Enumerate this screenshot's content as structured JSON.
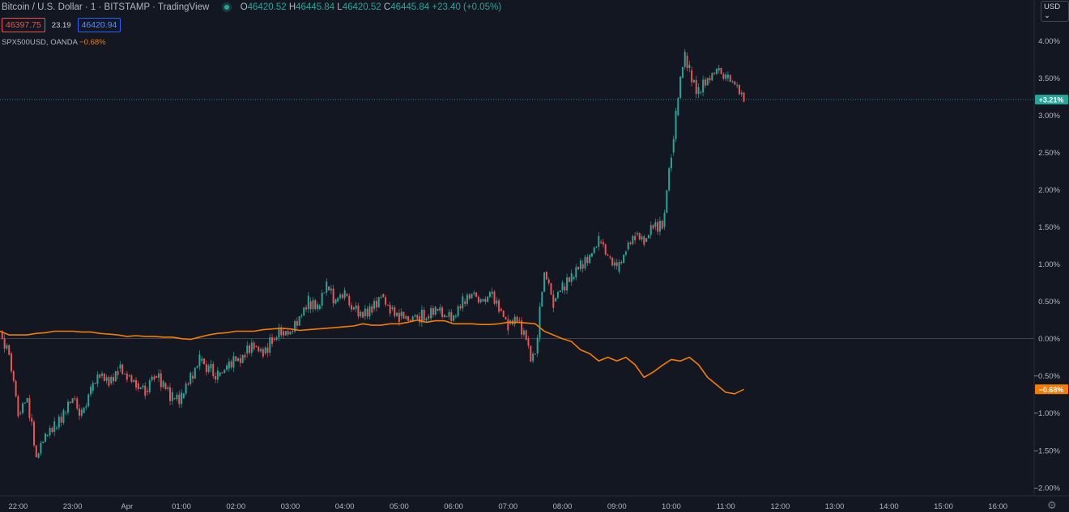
{
  "header": {
    "symbol": "Bitcoin / U.S. Dollar · 1 · BITSTAMP · TradingView",
    "ohlc": [
      {
        "k": "O",
        "v": "46420.52"
      },
      {
        "k": "H",
        "v": "46445.84"
      },
      {
        "k": "L",
        "v": "46420.52"
      },
      {
        "k": "C",
        "v": "46445.84"
      }
    ],
    "change": "+23.40 (+0.05%)"
  },
  "quotes": {
    "bid": "46397.75",
    "spread": "23.19",
    "ask": "46420.94"
  },
  "compare": {
    "name": "SPX500USD, OANDA",
    "change": "−0.68%"
  },
  "currency_button": "USD",
  "settings_icon": "gear-icon",
  "colors": {
    "background": "#131722",
    "up": "#26a69a",
    "down": "#ef5350",
    "compare": "#f57c00",
    "axis_text": "#b2b5be"
  },
  "chart_data": {
    "type": "line",
    "xlim": [
      "21:40",
      "16:40"
    ],
    "ylim": [
      -2.1,
      4.2
    ],
    "grid": false,
    "x_ticks": [
      "22:00",
      "23:00",
      "Apr",
      "01:00",
      "02:00",
      "03:00",
      "04:00",
      "05:00",
      "06:00",
      "07:00",
      "08:00",
      "09:00",
      "10:00",
      "11:00",
      "12:00",
      "13:00",
      "14:00",
      "15:00",
      "16:00"
    ],
    "y_ticks": [
      "4.00%",
      "3.50%",
      "3.00%",
      "2.50%",
      "2.00%",
      "1.50%",
      "1.00%",
      "0.50%",
      "0.00%",
      "−0.50%",
      "−1.00%",
      "−1.50%",
      "−2.00%"
    ],
    "y_tick_values": [
      4,
      3.5,
      3,
      2.5,
      2,
      1.5,
      1,
      0.5,
      0,
      -0.5,
      -1,
      -1.5,
      -2
    ],
    "zero_line": 0,
    "last_labels": [
      {
        "series": "BTCUSD",
        "text": "+3.21%",
        "value": 3.21
      },
      {
        "series": "SPX500USD",
        "text": "−0.68%",
        "value": -0.68
      }
    ],
    "series": [
      {
        "name": "BTCUSD",
        "style": "candles",
        "x": [
          "21:40",
          "21:50",
          "22:00",
          "22:10",
          "22:20",
          "22:30",
          "22:40",
          "22:50",
          "23:00",
          "23:10",
          "23:20",
          "23:30",
          "23:40",
          "23:50",
          "00:00",
          "00:10",
          "00:20",
          "00:30",
          "00:40",
          "00:50",
          "01:00",
          "01:10",
          "01:20",
          "01:30",
          "01:40",
          "01:50",
          "02:00",
          "02:10",
          "02:20",
          "02:30",
          "02:40",
          "02:50",
          "03:00",
          "03:10",
          "03:20",
          "03:30",
          "03:40",
          "03:50",
          "04:00",
          "04:10",
          "04:20",
          "04:30",
          "04:40",
          "04:50",
          "05:00",
          "05:10",
          "05:20",
          "05:30",
          "05:40",
          "05:50",
          "06:00",
          "06:10",
          "06:20",
          "06:30",
          "06:40",
          "06:50",
          "07:00",
          "07:10",
          "07:20",
          "07:25",
          "07:30",
          "07:40",
          "07:50",
          "08:00",
          "08:10",
          "08:20",
          "08:30",
          "08:40",
          "08:50",
          "09:00",
          "09:10",
          "09:20",
          "09:30",
          "09:40",
          "09:50",
          "10:00",
          "10:05",
          "10:10",
          "10:15",
          "10:20",
          "10:30",
          "10:40",
          "10:50",
          "11:00",
          "11:10",
          "11:20"
        ],
        "values": [
          0.1,
          -0.2,
          -1.0,
          -0.8,
          -1.6,
          -1.3,
          -1.2,
          -1.0,
          -0.8,
          -1.0,
          -0.7,
          -0.5,
          -0.6,
          -0.4,
          -0.5,
          -0.6,
          -0.7,
          -0.5,
          -0.6,
          -0.8,
          -0.8,
          -0.5,
          -0.3,
          -0.4,
          -0.5,
          -0.4,
          -0.3,
          -0.2,
          -0.1,
          -0.2,
          0.0,
          0.1,
          0.1,
          0.3,
          0.5,
          0.4,
          0.7,
          0.5,
          0.6,
          0.4,
          0.3,
          0.4,
          0.6,
          0.4,
          0.3,
          0.25,
          0.3,
          0.3,
          0.4,
          0.3,
          0.3,
          0.5,
          0.6,
          0.5,
          0.6,
          0.4,
          0.2,
          0.25,
          0.0,
          -0.3,
          -0.2,
          0.9,
          0.5,
          0.7,
          0.8,
          1.0,
          1.1,
          1.3,
          1.1,
          0.9,
          1.2,
          1.4,
          1.3,
          1.5,
          1.5,
          2.5,
          3.0,
          3.5,
          3.8,
          3.6,
          3.3,
          3.5,
          3.6,
          3.5,
          3.4,
          3.2
        ]
      },
      {
        "name": "SPX500USD",
        "style": "line",
        "x": [
          "21:40",
          "21:50",
          "22:00",
          "22:10",
          "22:20",
          "22:30",
          "22:40",
          "22:50",
          "23:00",
          "23:10",
          "23:20",
          "23:30",
          "23:40",
          "23:50",
          "00:00",
          "00:10",
          "00:20",
          "00:30",
          "00:40",
          "00:50",
          "01:00",
          "01:10",
          "01:20",
          "01:30",
          "01:40",
          "01:50",
          "02:00",
          "02:10",
          "02:20",
          "02:30",
          "02:40",
          "02:50",
          "03:00",
          "03:10",
          "03:20",
          "03:30",
          "03:40",
          "03:50",
          "04:00",
          "04:10",
          "04:20",
          "04:30",
          "04:40",
          "04:50",
          "05:00",
          "05:10",
          "05:20",
          "05:30",
          "05:40",
          "05:50",
          "06:00",
          "06:10",
          "06:20",
          "06:30",
          "06:40",
          "06:50",
          "07:00",
          "07:10",
          "07:20",
          "07:30",
          "07:40",
          "07:50",
          "08:00",
          "08:10",
          "08:20",
          "08:30",
          "08:40",
          "08:50",
          "09:00",
          "09:10",
          "09:20",
          "09:30",
          "09:40",
          "09:50",
          "10:00",
          "10:10",
          "10:20",
          "10:30",
          "10:40",
          "10:50",
          "11:00",
          "11:10",
          "11:20"
        ],
        "values": [
          0.1,
          0.05,
          0.05,
          0.05,
          0.07,
          0.08,
          0.1,
          0.1,
          0.1,
          0.09,
          0.09,
          0.07,
          0.06,
          0.05,
          0.03,
          0.04,
          0.03,
          0.03,
          0.02,
          0.02,
          0.0,
          -0.01,
          0.02,
          0.05,
          0.07,
          0.08,
          0.1,
          0.1,
          0.1,
          0.12,
          0.13,
          0.14,
          0.13,
          0.11,
          0.12,
          0.13,
          0.14,
          0.15,
          0.16,
          0.17,
          0.2,
          0.18,
          0.18,
          0.2,
          0.2,
          0.22,
          0.25,
          0.22,
          0.24,
          0.24,
          0.2,
          0.2,
          0.2,
          0.19,
          0.19,
          0.2,
          0.22,
          0.22,
          0.21,
          0.2,
          0.1,
          0.05,
          0.0,
          -0.04,
          -0.15,
          -0.2,
          -0.3,
          -0.25,
          -0.3,
          -0.25,
          -0.35,
          -0.52,
          -0.45,
          -0.36,
          -0.28,
          -0.3,
          -0.25,
          -0.35,
          -0.52,
          -0.62,
          -0.72,
          -0.74,
          -0.68
        ]
      }
    ]
  }
}
